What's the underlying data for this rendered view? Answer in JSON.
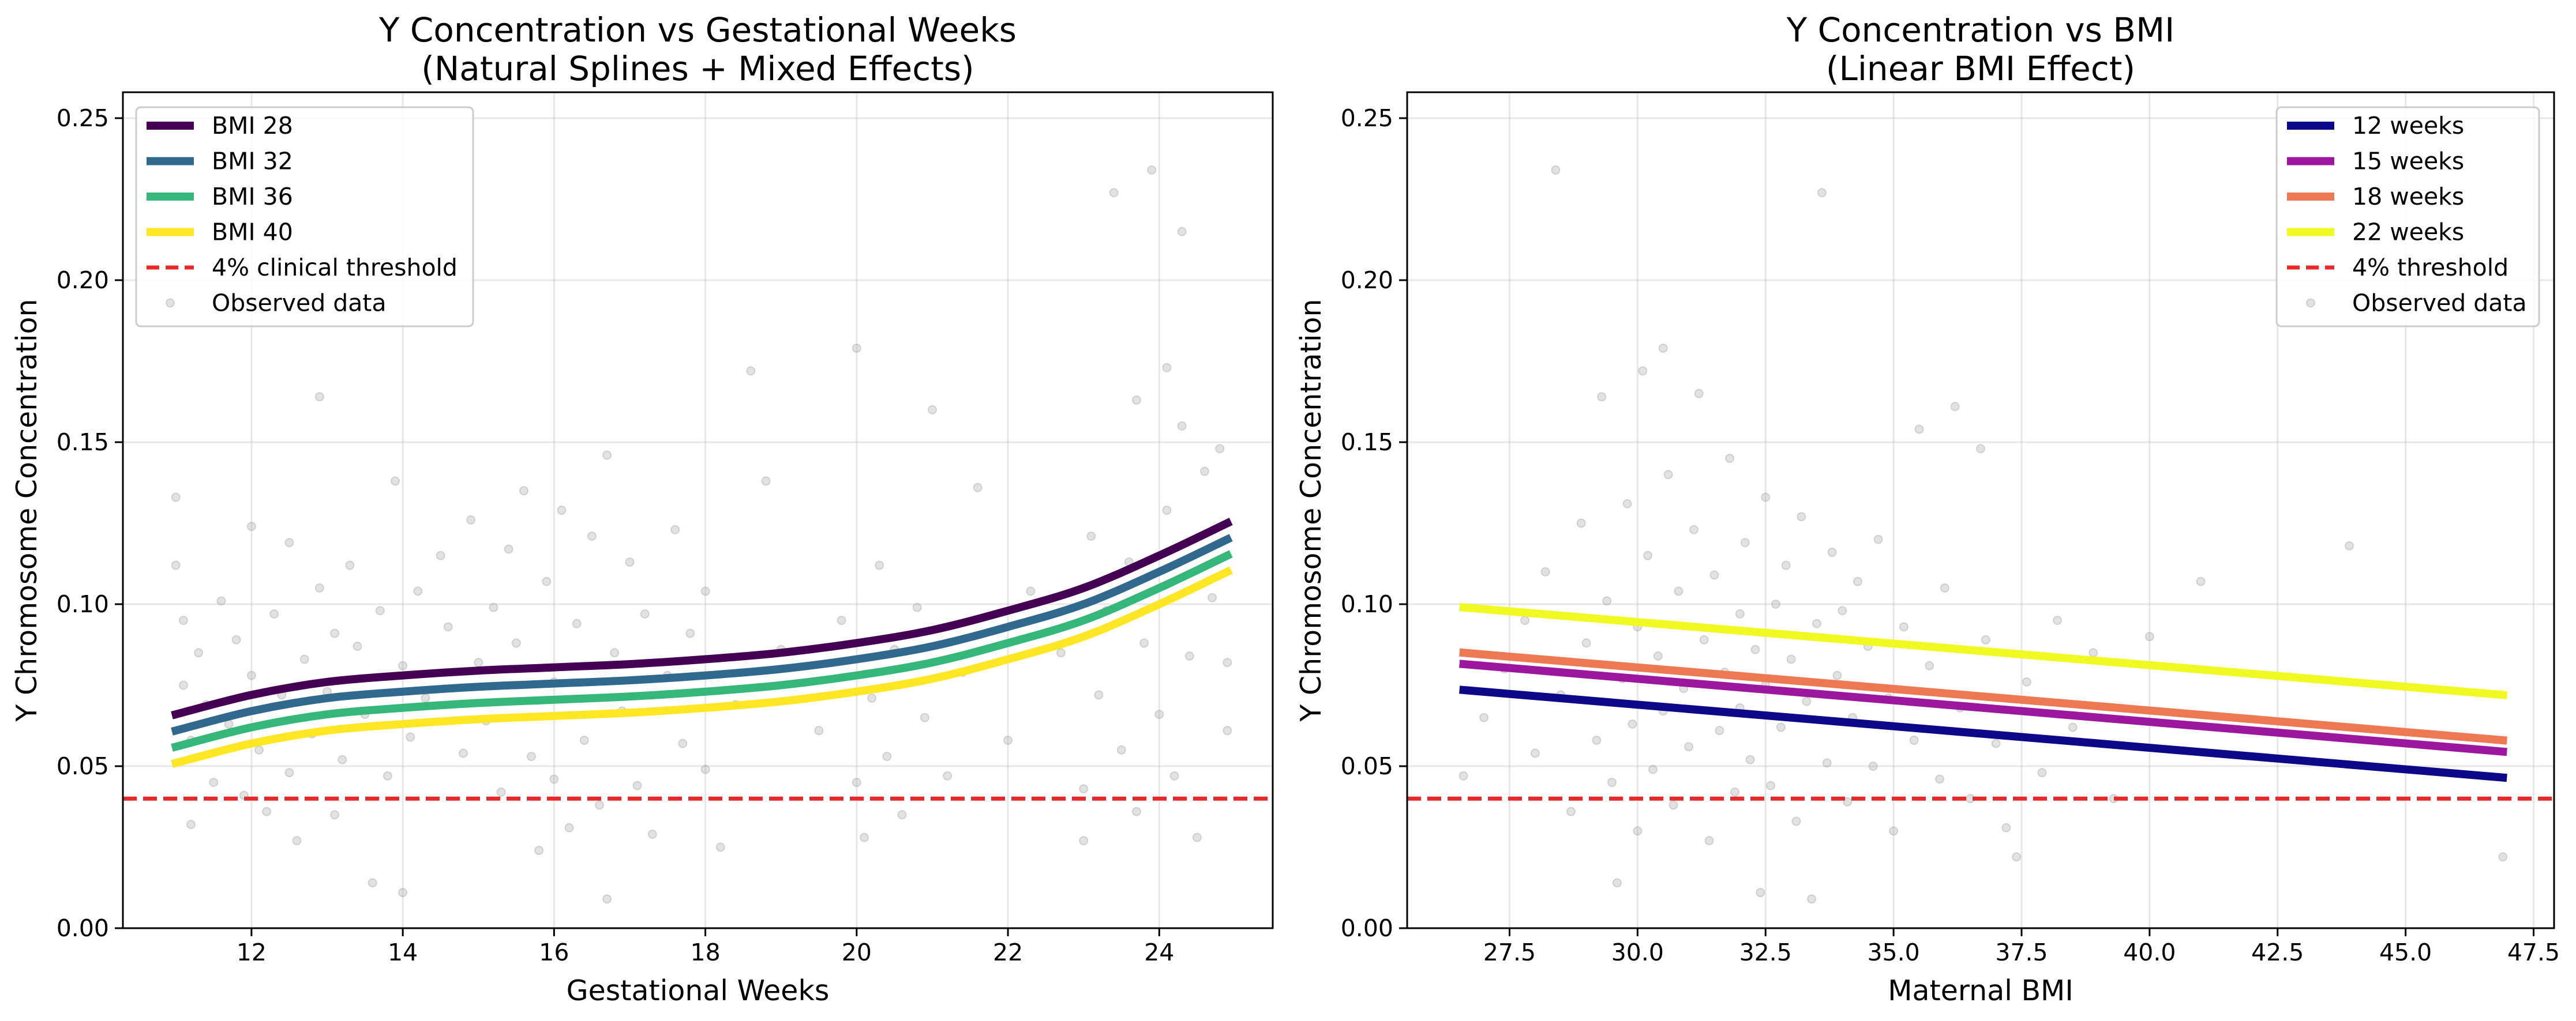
{
  "chart_data": [
    {
      "type": "line",
      "title": [
        "Y Concentration vs Gestational Weeks",
        "(Natural Splines + Mixed Effects)"
      ],
      "xlabel": "Gestational Weeks",
      "ylabel": "Y Chromosome Concentration",
      "xlim": [
        10.3,
        25.5
      ],
      "ylim": [
        0.0,
        0.258
      ],
      "xticks": [
        12,
        14,
        16,
        18,
        20,
        22,
        24
      ],
      "xtick_labels": [
        "12",
        "14",
        "16",
        "18",
        "20",
        "22",
        "24"
      ],
      "yticks": [
        0.0,
        0.05,
        0.1,
        0.15,
        0.2,
        0.25
      ],
      "ytick_labels": [
        "0.00",
        "0.05",
        "0.10",
        "0.15",
        "0.20",
        "0.25"
      ],
      "grid": true,
      "legend_position": "top-left",
      "series": [
        {
          "name": "BMI 28",
          "color": "#440154",
          "x": [
            11,
            12,
            13,
            14,
            15,
            16,
            17,
            18,
            19,
            20,
            21,
            22,
            23,
            24,
            24.9
          ],
          "y": [
            0.066,
            0.072,
            0.076,
            0.078,
            0.0795,
            0.0805,
            0.0815,
            0.083,
            0.085,
            0.088,
            0.092,
            0.098,
            0.105,
            0.115,
            0.125
          ]
        },
        {
          "name": "BMI 32",
          "color": "#31688e",
          "x": [
            11,
            12,
            13,
            14,
            15,
            16,
            17,
            18,
            19,
            20,
            21,
            22,
            23,
            24,
            24.9
          ],
          "y": [
            0.061,
            0.067,
            0.071,
            0.073,
            0.0745,
            0.0755,
            0.0765,
            0.078,
            0.08,
            0.083,
            0.087,
            0.093,
            0.1,
            0.11,
            0.12
          ]
        },
        {
          "name": "BMI 36",
          "color": "#35b779",
          "x": [
            11,
            12,
            13,
            14,
            15,
            16,
            17,
            18,
            19,
            20,
            21,
            22,
            23,
            24,
            24.9
          ],
          "y": [
            0.056,
            0.062,
            0.066,
            0.068,
            0.0695,
            0.0705,
            0.0715,
            0.073,
            0.075,
            0.078,
            0.082,
            0.088,
            0.095,
            0.105,
            0.115
          ]
        },
        {
          "name": "BMI 40",
          "color": "#fde725",
          "x": [
            11,
            12,
            13,
            14,
            15,
            16,
            17,
            18,
            19,
            20,
            21,
            22,
            23,
            24,
            24.9
          ],
          "y": [
            0.051,
            0.057,
            0.061,
            0.063,
            0.0645,
            0.0655,
            0.0665,
            0.068,
            0.07,
            0.073,
            0.077,
            0.083,
            0.09,
            0.1,
            0.11
          ]
        }
      ],
      "threshold": {
        "name": "4% clinical threshold",
        "value": 0.04,
        "color": "#e8292c",
        "style": "dashed"
      },
      "scatter": {
        "name": "Observed data",
        "color": "#a0a0a0",
        "points": [
          [
            11.0,
            0.133
          ],
          [
            11.0,
            0.112
          ],
          [
            11.1,
            0.095
          ],
          [
            11.1,
            0.075
          ],
          [
            11.2,
            0.058
          ],
          [
            11.2,
            0.032
          ],
          [
            11.3,
            0.085
          ],
          [
            11.4,
            0.069
          ],
          [
            11.5,
            0.045
          ],
          [
            11.6,
            0.101
          ],
          [
            11.7,
            0.063
          ],
          [
            11.8,
            0.089
          ],
          [
            11.9,
            0.041
          ],
          [
            12.0,
            0.124
          ],
          [
            12.0,
            0.078
          ],
          [
            12.1,
            0.055
          ],
          [
            12.2,
            0.036
          ],
          [
            12.3,
            0.097
          ],
          [
            12.4,
            0.072
          ],
          [
            12.5,
            0.119
          ],
          [
            12.5,
            0.048
          ],
          [
            12.6,
            0.027
          ],
          [
            12.7,
            0.083
          ],
          [
            12.8,
            0.06
          ],
          [
            12.9,
            0.105
          ],
          [
            12.9,
            0.164
          ],
          [
            13.0,
            0.073
          ],
          [
            13.1,
            0.091
          ],
          [
            13.1,
            0.035
          ],
          [
            13.2,
            0.052
          ],
          [
            13.3,
            0.112
          ],
          [
            13.4,
            0.087
          ],
          [
            13.5,
            0.066
          ],
          [
            13.6,
            0.014
          ],
          [
            13.7,
            0.098
          ],
          [
            13.8,
            0.047
          ],
          [
            13.9,
            0.138
          ],
          [
            14.0,
            0.081
          ],
          [
            14.0,
            0.011
          ],
          [
            14.1,
            0.059
          ],
          [
            14.2,
            0.104
          ],
          [
            14.3,
            0.071
          ],
          [
            14.5,
            0.115
          ],
          [
            14.6,
            0.093
          ],
          [
            14.8,
            0.054
          ],
          [
            14.9,
            0.126
          ],
          [
            15.0,
            0.082
          ],
          [
            15.1,
            0.064
          ],
          [
            15.2,
            0.099
          ],
          [
            15.3,
            0.042
          ],
          [
            15.4,
            0.117
          ],
          [
            15.5,
            0.088
          ],
          [
            15.6,
            0.135
          ],
          [
            15.7,
            0.053
          ],
          [
            15.8,
            0.024
          ],
          [
            15.9,
            0.107
          ],
          [
            16.0,
            0.076
          ],
          [
            16.0,
            0.046
          ],
          [
            16.1,
            0.129
          ],
          [
            16.2,
            0.031
          ],
          [
            16.3,
            0.094
          ],
          [
            16.4,
            0.058
          ],
          [
            16.5,
            0.121
          ],
          [
            16.6,
            0.038
          ],
          [
            16.7,
            0.009
          ],
          [
            16.7,
            0.146
          ],
          [
            16.8,
            0.085
          ],
          [
            16.9,
            0.067
          ],
          [
            17.0,
            0.113
          ],
          [
            17.1,
            0.044
          ],
          [
            17.2,
            0.097
          ],
          [
            17.3,
            0.029
          ],
          [
            17.5,
            0.078
          ],
          [
            17.6,
            0.123
          ],
          [
            17.7,
            0.057
          ],
          [
            17.8,
            0.091
          ],
          [
            18.0,
            0.049
          ],
          [
            18.0,
            0.104
          ],
          [
            18.2,
            0.025
          ],
          [
            18.4,
            0.069
          ],
          [
            18.6,
            0.172
          ],
          [
            18.8,
            0.138
          ],
          [
            19.0,
            0.086
          ],
          [
            19.5,
            0.061
          ],
          [
            19.8,
            0.095
          ],
          [
            20.0,
            0.045
          ],
          [
            20.0,
            0.179
          ],
          [
            20.1,
            0.028
          ],
          [
            20.2,
            0.071
          ],
          [
            20.3,
            0.112
          ],
          [
            20.4,
            0.053
          ],
          [
            20.5,
            0.086
          ],
          [
            20.6,
            0.035
          ],
          [
            20.8,
            0.099
          ],
          [
            20.9,
            0.065
          ],
          [
            21.0,
            0.16
          ],
          [
            21.2,
            0.047
          ],
          [
            21.4,
            0.079
          ],
          [
            21.6,
            0.136
          ],
          [
            22.0,
            0.058
          ],
          [
            22.3,
            0.104
          ],
          [
            22.7,
            0.085
          ],
          [
            23.0,
            0.043
          ],
          [
            23.0,
            0.027
          ],
          [
            23.1,
            0.121
          ],
          [
            23.2,
            0.072
          ],
          [
            23.3,
            0.098
          ],
          [
            23.4,
            0.227
          ],
          [
            23.5,
            0.055
          ],
          [
            23.6,
            0.113
          ],
          [
            23.7,
            0.163
          ],
          [
            23.7,
            0.036
          ],
          [
            23.8,
            0.088
          ],
          [
            23.9,
            0.234
          ],
          [
            24.0,
            0.066
          ],
          [
            24.1,
            0.173
          ],
          [
            24.1,
            0.129
          ],
          [
            24.2,
            0.047
          ],
          [
            24.3,
            0.215
          ],
          [
            24.3,
            0.155
          ],
          [
            24.4,
            0.084
          ],
          [
            24.5,
            0.028
          ],
          [
            24.6,
            0.141
          ],
          [
            24.7,
            0.102
          ],
          [
            24.8,
            0.148
          ],
          [
            24.9,
            0.061
          ],
          [
            24.9,
            0.082
          ]
        ]
      }
    },
    {
      "type": "line",
      "title": [
        "Y Concentration vs BMI",
        "(Linear BMI Effect)"
      ],
      "xlabel": "Maternal BMI",
      "ylabel": "Y Chromosome Concentration",
      "xlim": [
        25.5,
        47.9
      ],
      "ylim": [
        0.0,
        0.258
      ],
      "xticks": [
        27.5,
        30.0,
        32.5,
        35.0,
        37.5,
        40.0,
        42.5,
        45.0,
        47.5
      ],
      "xtick_labels": [
        "27.5",
        "30.0",
        "32.5",
        "35.0",
        "37.5",
        "40.0",
        "42.5",
        "45.0",
        "47.5"
      ],
      "yticks": [
        0.0,
        0.05,
        0.1,
        0.15,
        0.2,
        0.25
      ],
      "ytick_labels": [
        "0.00",
        "0.05",
        "0.10",
        "0.15",
        "0.20",
        "0.25"
      ],
      "grid": true,
      "legend_position": "top-right",
      "series": [
        {
          "name": "12 weeks",
          "color": "#0d0887",
          "x": [
            26.6,
            46.9
          ],
          "y": [
            0.0735,
            0.0465
          ]
        },
        {
          "name": "15 weeks",
          "color": "#9c179e",
          "x": [
            26.6,
            46.9
          ],
          "y": [
            0.0815,
            0.0545
          ]
        },
        {
          "name": "18 weeks",
          "color": "#ed7953",
          "x": [
            26.6,
            46.9
          ],
          "y": [
            0.085,
            0.058
          ]
        },
        {
          "name": "22 weeks",
          "color": "#f0f921",
          "x": [
            26.6,
            46.9
          ],
          "y": [
            0.099,
            0.072
          ]
        }
      ],
      "threshold": {
        "name": "4% threshold",
        "value": 0.04,
        "color": "#e8292c",
        "style": "dashed"
      },
      "scatter": {
        "name": "Observed data",
        "color": "#a0a0a0",
        "points": [
          [
            26.6,
            0.047
          ],
          [
            27.0,
            0.065
          ],
          [
            27.4,
            0.08
          ],
          [
            27.8,
            0.095
          ],
          [
            28.0,
            0.054
          ],
          [
            28.2,
            0.11
          ],
          [
            28.4,
            0.234
          ],
          [
            28.5,
            0.072
          ],
          [
            28.7,
            0.036
          ],
          [
            28.9,
            0.125
          ],
          [
            29.0,
            0.088
          ],
          [
            29.2,
            0.058
          ],
          [
            29.3,
            0.164
          ],
          [
            29.4,
            0.101
          ],
          [
            29.5,
            0.045
          ],
          [
            29.6,
            0.014
          ],
          [
            29.7,
            0.077
          ],
          [
            29.8,
            0.131
          ],
          [
            29.9,
            0.063
          ],
          [
            30.0,
            0.093
          ],
          [
            30.0,
            0.03
          ],
          [
            30.1,
            0.172
          ],
          [
            30.2,
            0.115
          ],
          [
            30.3,
            0.049
          ],
          [
            30.4,
            0.084
          ],
          [
            30.5,
            0.179
          ],
          [
            30.5,
            0.067
          ],
          [
            30.6,
            0.14
          ],
          [
            30.7,
            0.038
          ],
          [
            30.8,
            0.104
          ],
          [
            30.9,
            0.074
          ],
          [
            31.0,
            0.056
          ],
          [
            31.1,
            0.123
          ],
          [
            31.2,
            0.165
          ],
          [
            31.3,
            0.089
          ],
          [
            31.4,
            0.027
          ],
          [
            31.5,
            0.109
          ],
          [
            31.6,
            0.061
          ],
          [
            31.7,
            0.079
          ],
          [
            31.8,
            0.145
          ],
          [
            31.9,
            0.042
          ],
          [
            32.0,
            0.097
          ],
          [
            32.0,
            0.068
          ],
          [
            32.1,
            0.119
          ],
          [
            32.2,
            0.052
          ],
          [
            32.3,
            0.086
          ],
          [
            32.4,
            0.011
          ],
          [
            32.5,
            0.133
          ],
          [
            32.5,
            0.075
          ],
          [
            32.6,
            0.044
          ],
          [
            32.7,
            0.1
          ],
          [
            32.8,
            0.062
          ],
          [
            32.9,
            0.112
          ],
          [
            33.0,
            0.083
          ],
          [
            33.1,
            0.033
          ],
          [
            33.2,
            0.127
          ],
          [
            33.3,
            0.07
          ],
          [
            33.4,
            0.009
          ],
          [
            33.5,
            0.094
          ],
          [
            33.6,
            0.227
          ],
          [
            33.7,
            0.051
          ],
          [
            33.8,
            0.116
          ],
          [
            33.9,
            0.078
          ],
          [
            34.0,
            0.098
          ],
          [
            34.1,
            0.039
          ],
          [
            34.2,
            0.065
          ],
          [
            34.3,
            0.107
          ],
          [
            34.5,
            0.087
          ],
          [
            34.6,
            0.05
          ],
          [
            34.7,
            0.12
          ],
          [
            34.9,
            0.071
          ],
          [
            35.0,
            0.03
          ],
          [
            35.2,
            0.093
          ],
          [
            35.4,
            0.058
          ],
          [
            35.5,
            0.154
          ],
          [
            35.7,
            0.081
          ],
          [
            35.9,
            0.046
          ],
          [
            36.0,
            0.105
          ],
          [
            36.2,
            0.161
          ],
          [
            36.3,
            0.068
          ],
          [
            36.5,
            0.04
          ],
          [
            36.7,
            0.148
          ],
          [
            36.8,
            0.089
          ],
          [
            37.0,
            0.057
          ],
          [
            37.2,
            0.031
          ],
          [
            37.4,
            0.022
          ],
          [
            37.6,
            0.076
          ],
          [
            37.9,
            0.048
          ],
          [
            38.2,
            0.095
          ],
          [
            38.5,
            0.062
          ],
          [
            38.9,
            0.085
          ],
          [
            39.3,
            0.04
          ],
          [
            40.0,
            0.09
          ],
          [
            41.0,
            0.107
          ],
          [
            43.9,
            0.118
          ],
          [
            46.9,
            0.022
          ]
        ]
      }
    }
  ]
}
